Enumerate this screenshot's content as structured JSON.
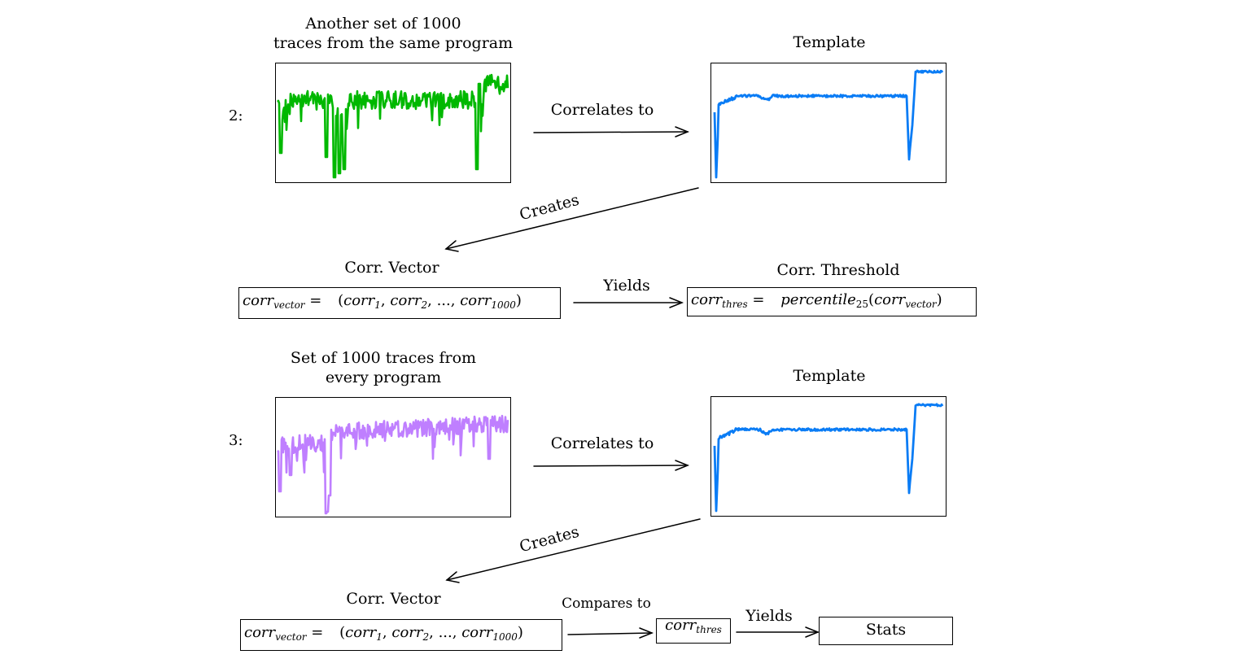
{
  "step2": {
    "row_label": "2:",
    "traces_title": [
      "Another set of 1000",
      "traces from the same program"
    ],
    "traces_color": "#00b800",
    "template_title": "Template",
    "template_color": "#0a7cf5",
    "correlates_label": "Correlates to",
    "creates_label": "Creates",
    "corr_vector_title": "Corr. Vector",
    "corr_vector_formula": {
      "lhs_base": "corr",
      "lhs_sub": "vector",
      "eq": "=",
      "open": "(",
      "t1_base": "corr",
      "t1_sub": "1",
      "sep1": ", ",
      "t2_base": "corr",
      "t2_sub": "2",
      "sep2": ", ..., ",
      "t3_base": "corr",
      "t3_sub": "1000",
      "close": ")"
    },
    "yields_label": "Yields",
    "threshold_title": "Corr. Threshold",
    "threshold_formula": {
      "lhs_base": "corr",
      "lhs_sub": "thres",
      "eq": "=",
      "fn_base": "percentile",
      "fn_sub": "25",
      "open": "(",
      "arg_base": "corr",
      "arg_sub": "vector",
      "close": ")"
    }
  },
  "step3": {
    "row_label": "3:",
    "traces_title": [
      "Set of 1000 traces from",
      "every program"
    ],
    "traces_color": "#bf7fff",
    "template_title": "Template",
    "template_color": "#0a7cf5",
    "correlates_label": "Correlates to",
    "creates_label": "Creates",
    "corr_vector_title": "Corr. Vector",
    "corr_vector_formula": {
      "lhs_base": "corr",
      "lhs_sub": "vector",
      "eq": "=",
      "open": "(",
      "t1_base": "corr",
      "t1_sub": "1",
      "sep1": ", ",
      "t2_base": "corr",
      "t2_sub": "2",
      "sep2": ", ..., ",
      "t3_base": "corr",
      "t3_sub": "1000",
      "close": ")"
    },
    "compares_label": "Compares to",
    "thres_box": {
      "base": "corr",
      "sub": "thres"
    },
    "yields_label": "Yields",
    "stats_label": "Stats"
  }
}
